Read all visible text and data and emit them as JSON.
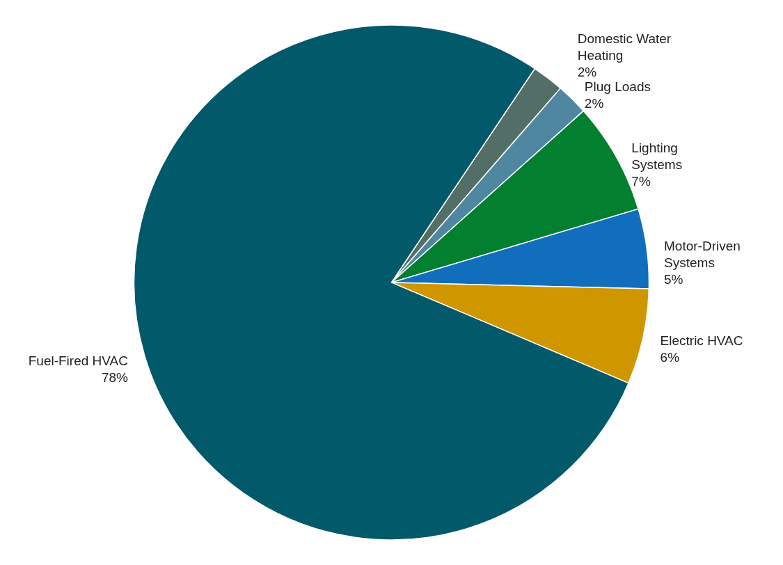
{
  "chart_data": {
    "type": "pie",
    "categories": [
      "Domestic Water Heating",
      "Plug Loads",
      "Lighting Systems",
      "Motor-Driven Systems",
      "Electric HVAC",
      "Fuel-Fired HVAC"
    ],
    "values": [
      2,
      2,
      7,
      5,
      6,
      78
    ],
    "value_labels": [
      "2%",
      "2%",
      "7%",
      "5%",
      "6%",
      "78%"
    ],
    "colors": [
      "#536e66",
      "#4f86a0",
      "#02802f",
      "#106ebd",
      "#d09600",
      "#02596a"
    ]
  }
}
